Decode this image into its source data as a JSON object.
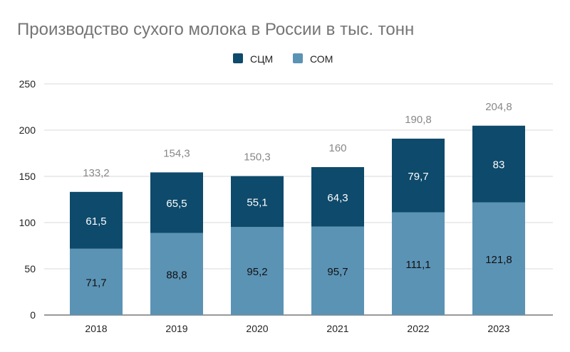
{
  "chart_data": {
    "type": "bar",
    "stacked": true,
    "title": "Производство сухого молока в России в тыс. тонн",
    "categories": [
      "2018",
      "2019",
      "2020",
      "2021",
      "2022",
      "2023"
    ],
    "series": [
      {
        "name": "СОМ",
        "values": [
          71.7,
          88.8,
          95.2,
          95.7,
          111.1,
          121.8
        ],
        "labels": [
          "71,7",
          "88,8",
          "95,2",
          "95,7",
          "111,1",
          "121,8"
        ],
        "color": "#5b93b5"
      },
      {
        "name": "СЦМ",
        "values": [
          61.5,
          65.5,
          55.1,
          64.3,
          79.7,
          83
        ],
        "labels": [
          "61,5",
          "65,5",
          "55,1",
          "64,3",
          "79,7",
          "83"
        ],
        "color": "#0e4a6b"
      }
    ],
    "totals": [
      133.2,
      154.3,
      150.3,
      160,
      190.8,
      204.8
    ],
    "total_labels": [
      "133,2",
      "154,3",
      "150,3",
      "160",
      "190,8",
      "204,8"
    ],
    "legend_order": [
      "СЦМ",
      "СОМ"
    ],
    "legend_position": "top",
    "ylim": [
      0,
      250
    ],
    "yticks": [
      0,
      50,
      100,
      150,
      200,
      250
    ],
    "grid": true,
    "xlabel": "",
    "ylabel": ""
  }
}
